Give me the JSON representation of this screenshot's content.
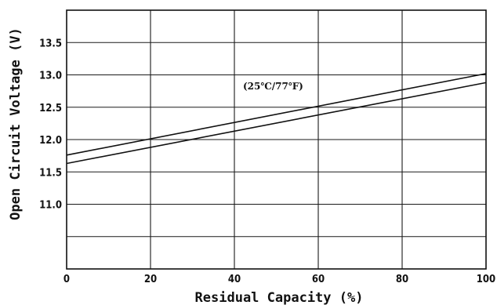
{
  "chart_data": {
    "type": "line",
    "xlabel": "Residual Capacity (%)",
    "ylabel": "Open Circuit Voltage (V)",
    "annotation": "(25℃/77℉)",
    "xlim": [
      0,
      100
    ],
    "ylim": [
      10.0,
      14.0
    ],
    "x_ticks": [
      0,
      20,
      40,
      60,
      80,
      100
    ],
    "y_tick_labels": [
      11.0,
      11.5,
      12.0,
      12.5,
      13.0,
      13.5
    ],
    "y_grid": [
      10.5,
      11.0,
      11.5,
      12.0,
      12.5,
      13.0,
      13.5
    ],
    "grid": true,
    "series": [
      {
        "x": [
          0,
          100
        ],
        "y": [
          11.76,
          13.02
        ]
      },
      {
        "x": [
          0,
          100
        ],
        "y": [
          11.63,
          12.88
        ]
      }
    ]
  }
}
